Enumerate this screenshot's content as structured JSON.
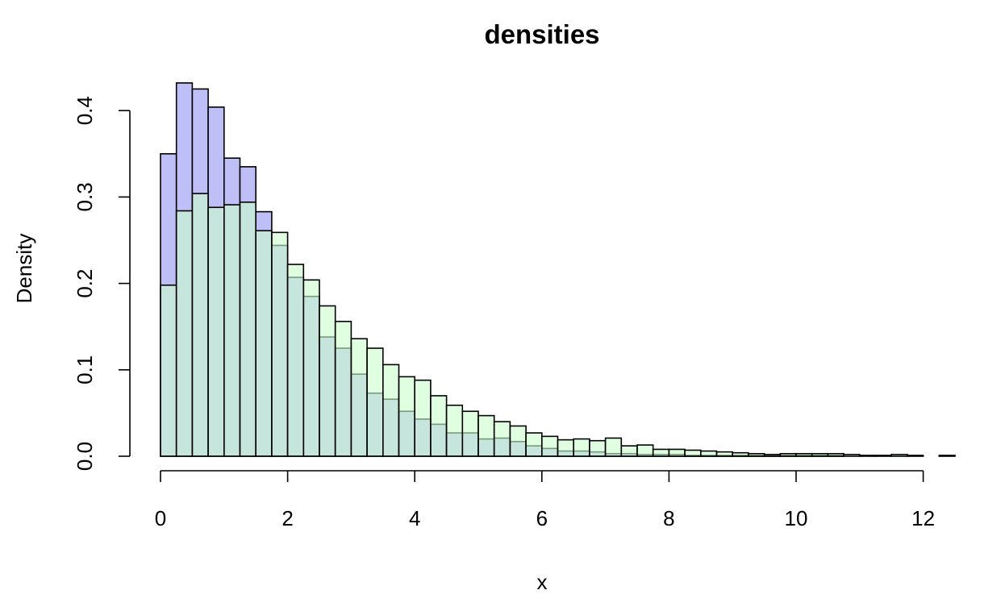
{
  "chart_data": {
    "type": "bar",
    "title": "densities",
    "xlabel": "x",
    "ylabel": "Density",
    "bin_width": 0.25,
    "xlim": [
      0,
      12.5
    ],
    "ylim": [
      0,
      0.44
    ],
    "x_ticks": [
      "0",
      "2",
      "4",
      "6",
      "8",
      "10",
      "12"
    ],
    "x_tick_values": [
      0,
      2,
      4,
      6,
      8,
      10,
      12
    ],
    "y_ticks": [
      "0.0",
      "0.1",
      "0.2",
      "0.3",
      "0.4"
    ],
    "y_tick_values": [
      0,
      0.1,
      0.2,
      0.3,
      0.4
    ],
    "grid": false,
    "series": [
      {
        "color": "#bfbff7",
        "bin_starts": [
          0,
          0.25,
          0.5,
          0.75,
          1.0,
          1.25,
          1.5,
          1.75,
          2.0,
          2.25,
          2.5,
          2.75,
          3.0,
          3.25,
          3.5,
          3.75,
          4.0,
          4.25,
          4.5,
          4.75,
          5.0,
          5.25,
          5.5,
          5.75,
          6.0,
          6.25,
          6.5,
          6.75,
          7.0,
          7.25,
          7.5,
          7.75,
          8.0,
          8.25,
          8.5,
          8.75,
          9.0,
          9.25,
          9.5,
          9.75,
          10.0,
          10.25,
          10.5,
          10.75,
          11.0,
          11.25
        ],
        "values": [
          0.35,
          0.432,
          0.425,
          0.404,
          0.345,
          0.335,
          0.283,
          0.244,
          0.207,
          0.185,
          0.138,
          0.125,
          0.095,
          0.073,
          0.066,
          0.052,
          0.043,
          0.037,
          0.027,
          0.027,
          0.02,
          0.021,
          0.017,
          0.012,
          0.009,
          0.006,
          0.006,
          0.005,
          0.003,
          0.003,
          0.002,
          0.002,
          0.002,
          0.001,
          0.001,
          0.001,
          0.001,
          0.001,
          0.001,
          0.001,
          0.001,
          0.001,
          0.001,
          0.0,
          0.0,
          0.0
        ]
      },
      {
        "color": "#ccffcc",
        "bin_starts": [
          0,
          0.25,
          0.5,
          0.75,
          1.0,
          1.25,
          1.5,
          1.75,
          2.0,
          2.25,
          2.5,
          2.75,
          3.0,
          3.25,
          3.5,
          3.75,
          4.0,
          4.25,
          4.5,
          4.75,
          5.0,
          5.25,
          5.5,
          5.75,
          6.0,
          6.25,
          6.5,
          6.75,
          7.0,
          7.25,
          7.5,
          7.75,
          8.0,
          8.25,
          8.5,
          8.75,
          9.0,
          9.25,
          9.5,
          9.75,
          10.0,
          10.25,
          10.5,
          10.75,
          11.0,
          11.25,
          11.5,
          11.75,
          12.0,
          12.25
        ],
        "values": [
          0.198,
          0.284,
          0.304,
          0.288,
          0.291,
          0.294,
          0.261,
          0.259,
          0.222,
          0.204,
          0.174,
          0.156,
          0.136,
          0.125,
          0.106,
          0.092,
          0.088,
          0.07,
          0.059,
          0.052,
          0.047,
          0.04,
          0.035,
          0.027,
          0.023,
          0.019,
          0.02,
          0.018,
          0.021,
          0.012,
          0.013,
          0.008,
          0.008,
          0.007,
          0.006,
          0.005,
          0.004,
          0.003,
          0.002,
          0.003,
          0.003,
          0.003,
          0.003,
          0.002,
          0.001,
          0.001,
          0.002,
          0.001,
          0.0,
          0.001
        ]
      }
    ]
  }
}
